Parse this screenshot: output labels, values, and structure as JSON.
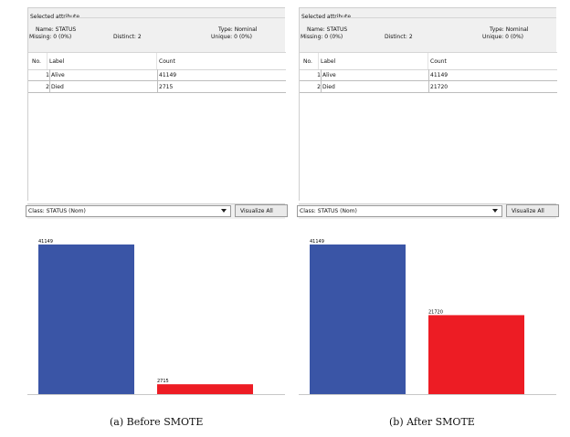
{
  "panels": [
    {
      "id": "a",
      "selected_attribute_title": "Selected attribute",
      "name": "Name: STATUS",
      "missing": "Missing: 0 (0%)",
      "distinct": "Distinct: 2",
      "type": "Type: Nominal",
      "unique": "Unique: 0 (0%)",
      "columns": [
        "No.",
        "Label",
        "Count"
      ],
      "rows": [
        {
          "no": "1",
          "label": "Alive",
          "count": "41149"
        },
        {
          "no": "2",
          "label": "Died",
          "count": "2715"
        }
      ],
      "class_select": "Class: STATUS (Nom)",
      "visualize_button": "Visualize All",
      "caption": "(a)  Before SMOTE",
      "chart_data": {
        "type": "bar",
        "categories": [
          "Alive",
          "Died"
        ],
        "values": [
          41149,
          2715
        ],
        "data_labels": [
          "41149",
          "2715"
        ],
        "colors": [
          "#3a55a6",
          "#ed1c24"
        ],
        "ylim": [
          0,
          41149
        ]
      }
    },
    {
      "id": "b",
      "selected_attribute_title": "Selected attribute",
      "name": "Name: STATUS",
      "missing": "Missing: 0 (0%)",
      "distinct": "Distinct: 2",
      "type": "Type: Nominal",
      "unique": "Unique: 0 (0%)",
      "columns": [
        "No.",
        "Label",
        "Count"
      ],
      "rows": [
        {
          "no": "1",
          "label": "Alive",
          "count": "41149"
        },
        {
          "no": "2",
          "label": "Died",
          "count": "21720"
        }
      ],
      "class_select": "Class: STATUS (Nom)",
      "visualize_button": "Visualize All",
      "caption": "(b)  After  SMOTE",
      "chart_data": {
        "type": "bar",
        "categories": [
          "Alive",
          "Died"
        ],
        "values": [
          41149,
          21720
        ],
        "data_labels": [
          "41149",
          "21720"
        ],
        "colors": [
          "#3a55a6",
          "#ed1c24"
        ],
        "ylim": [
          0,
          41149
        ]
      }
    }
  ]
}
